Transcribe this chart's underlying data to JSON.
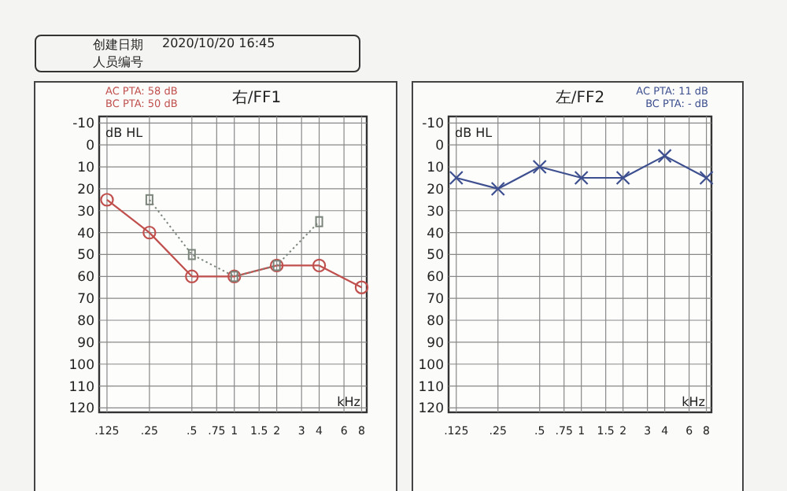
{
  "chart_data": [
    {
      "type": "other",
      "annotations": [
        "创建日期",
        "2020/10/20 16:45",
        "人员编号"
      ]
    },
    {
      "type": "line",
      "title": "右/FF1",
      "xlabel": "kHz",
      "ylabel": "dB HL",
      "annotations": [
        "AC PTA: 58 dB",
        "BC PTA: 50 dB"
      ],
      "log": "x",
      "xlim": [
        0.11,
        8.7
      ],
      "ylim": [
        122,
        -13
      ],
      "xticks": [
        {
          "value": 0.125,
          "label": ".125"
        },
        {
          "value": 0.25,
          "label": ".25"
        },
        {
          "value": 0.5,
          "label": ".5"
        },
        {
          "value": 0.75,
          "label": ".75"
        },
        1,
        1.5,
        2,
        3,
        4,
        6,
        8
      ],
      "yticks": [
        -10,
        0,
        10,
        20,
        30,
        40,
        50,
        60,
        70,
        80,
        90,
        100,
        110,
        120
      ],
      "grid": true,
      "series": [
        {
          "color": "#c0504d",
          "marker": "circle",
          "line_style": "solid",
          "x": [
            0.125,
            0.25,
            0.5,
            1,
            2,
            4,
            8
          ],
          "values": [
            25,
            40,
            60,
            60,
            55,
            55,
            65
          ]
        },
        {
          "color": "#7a847a",
          "marker": "square",
          "line_style": "dotted",
          "x": [
            0.25,
            0.5,
            1,
            2,
            4
          ],
          "values": [
            25,
            50,
            60,
            55,
            35
          ]
        }
      ]
    },
    {
      "type": "line",
      "title": "左/FF2",
      "xlabel": "kHz",
      "ylabel": "dB HL",
      "annotations": [
        "AC PTA: 11 dB",
        "BC PTA: - dB"
      ],
      "log": "x",
      "xlim": [
        0.11,
        8.7
      ],
      "ylim": [
        122,
        -13
      ],
      "xticks": [
        {
          "value": 0.125,
          "label": ".125"
        },
        {
          "value": 0.25,
          "label": ".25"
        },
        {
          "value": 0.5,
          "label": ".5"
        },
        {
          "value": 0.75,
          "label": ".75"
        },
        1,
        1.5,
        2,
        3,
        4,
        6,
        8
      ],
      "yticks": [
        -10,
        0,
        10,
        20,
        30,
        40,
        50,
        60,
        70,
        80,
        90,
        100,
        110,
        120
      ],
      "grid": true,
      "series": [
        {
          "color": "#3d4f8f",
          "marker": "cross",
          "line_style": "solid",
          "x": [
            0.125,
            0.25,
            0.5,
            1,
            2,
            4,
            8
          ],
          "values": [
            15,
            20,
            10,
            15,
            15,
            5,
            15
          ]
        }
      ]
    }
  ]
}
